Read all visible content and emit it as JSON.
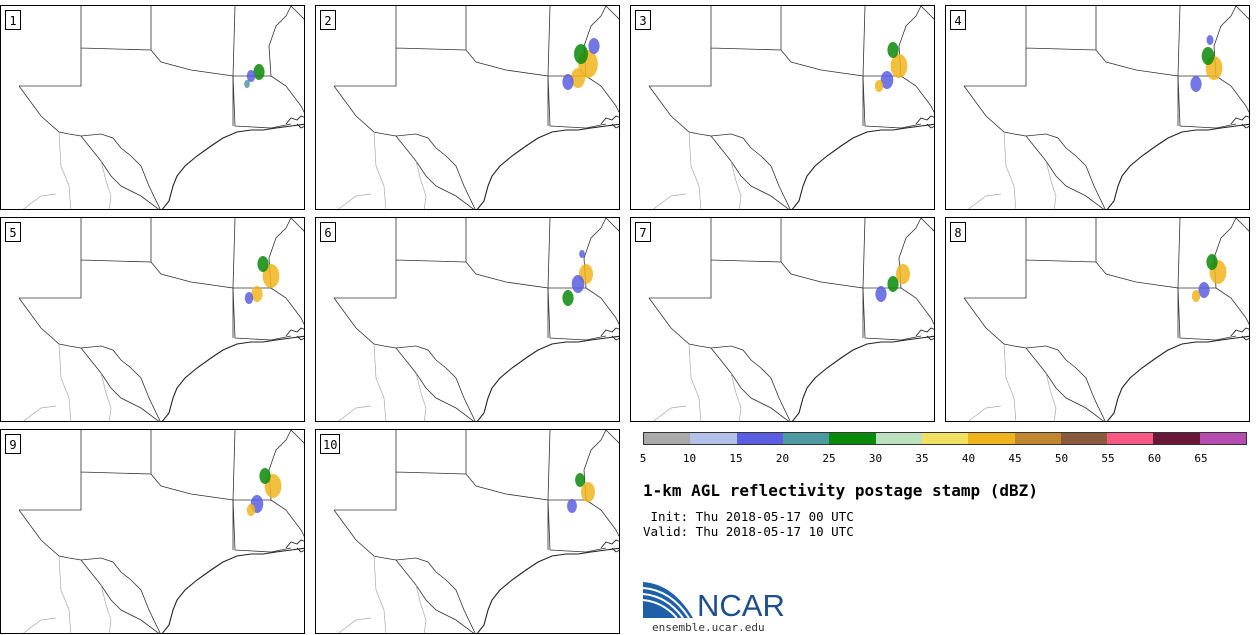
{
  "panels": [
    {
      "label": "1"
    },
    {
      "label": "2"
    },
    {
      "label": "3"
    },
    {
      "label": "4"
    },
    {
      "label": "5"
    },
    {
      "label": "6"
    },
    {
      "label": "7"
    },
    {
      "label": "8"
    },
    {
      "label": "9"
    },
    {
      "label": "10"
    }
  ],
  "colorbar": {
    "colors": [
      "#a9a9a9",
      "#b3c1ea",
      "#5a5ee0",
      "#4f9aa0",
      "#0a8a0a",
      "#bde0c0",
      "#f0e060",
      "#f0b41c",
      "#c08630",
      "#8a5a3c",
      "#f55a84",
      "#6a1838",
      "#b54cb0"
    ],
    "ticks": [
      "5",
      "10",
      "15",
      "20",
      "25",
      "30",
      "35",
      "40",
      "45",
      "50",
      "55",
      "60",
      "65"
    ]
  },
  "title": "1-km AGL reflectivity postage stamp (dBZ)",
  "init_line": " Init: Thu 2018-05-17 00 UTC",
  "valid_line": "Valid: Thu 2018-05-17 10 UTC",
  "logo": {
    "name": "NCAR",
    "url": "ensemble.ucar.edu"
  }
}
